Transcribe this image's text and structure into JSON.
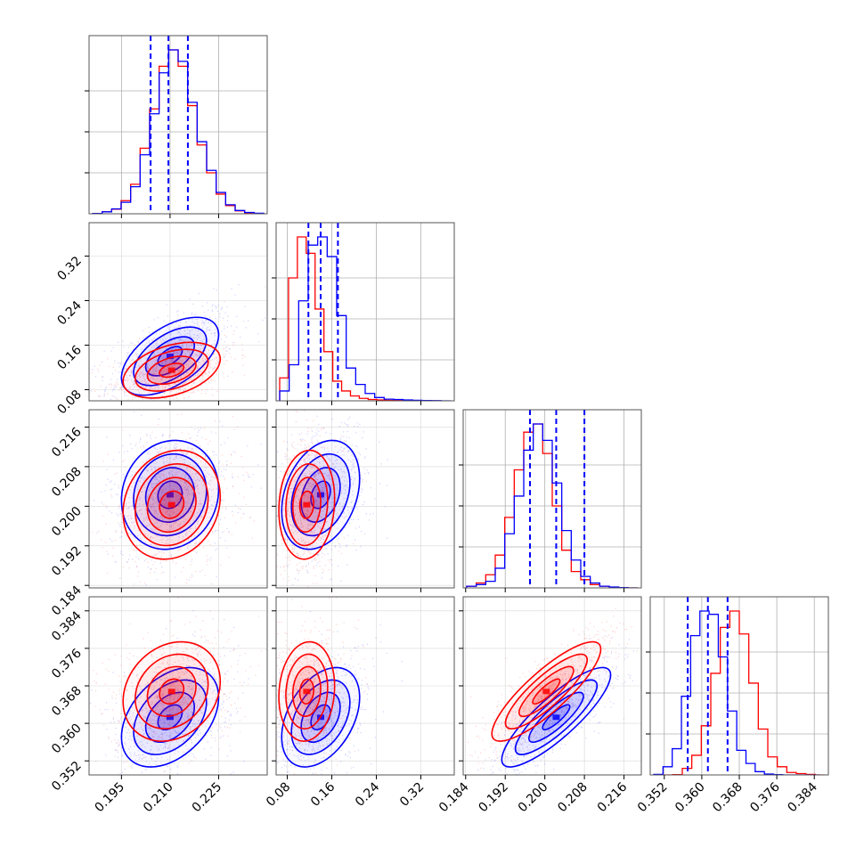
{
  "chart_data": {
    "type": "corner",
    "colors": {
      "series_a": "#0000ff",
      "series_b": "#ff0000",
      "grid": "#b0b0b0",
      "frame": "#555555"
    },
    "grid": true,
    "parameters": [
      {
        "range": [
          0.185,
          0.24
        ],
        "ticks": [
          "0.195",
          "0.210",
          "0.225"
        ],
        "tick_values": [
          0.195,
          0.21,
          0.225
        ]
      },
      {
        "range": [
          0.06,
          0.38
        ],
        "ticks": [
          "0.08",
          "0.16",
          "0.24",
          "0.32"
        ],
        "tick_values": [
          0.08,
          0.16,
          0.24,
          0.32
        ]
      },
      {
        "range": [
          0.1835,
          0.2195
        ],
        "ticks": [
          "0.184",
          "0.192",
          "0.200",
          "0.208",
          "0.216"
        ],
        "tick_values": [
          0.184,
          0.192,
          0.2,
          0.208,
          0.216
        ]
      },
      {
        "range": [
          0.349,
          0.387
        ],
        "ticks": [
          "0.352",
          "0.360",
          "0.368",
          "0.376",
          "0.384"
        ],
        "tick_values": [
          0.352,
          0.36,
          0.368,
          0.376,
          0.384
        ]
      }
    ],
    "series": [
      {
        "color": "#0000ff",
        "means": [
          0.21,
          0.14,
          0.2023,
          0.3613
        ],
        "sds": [
          0.0075,
          0.035,
          0.0055,
          0.0053
        ],
        "quantiles": [
          [
            0.204,
            0.2095,
            0.2155
          ],
          [
            0.118,
            0.14,
            0.171
          ],
          [
            0.197,
            0.2023,
            0.208
          ],
          [
            0.357,
            0.3613,
            0.3655
          ]
        ],
        "correlations": [
          [
            0,
            1,
            0.55
          ],
          [
            0,
            2,
            0.1
          ],
          [
            0,
            3,
            0.4
          ],
          [
            1,
            2,
            0.3
          ],
          [
            1,
            3,
            0.4
          ],
          [
            2,
            3,
            0.85
          ]
        ],
        "histograms": [
          [
            0.002,
            0.012,
            0.03,
            0.07,
            0.165,
            0.36,
            0.61,
            0.86,
            1.0,
            0.93,
            0.68,
            0.44,
            0.265,
            0.13,
            0.055,
            0.02,
            0.008,
            0.003
          ],
          [
            0.06,
            0.22,
            0.61,
            0.95,
            1.0,
            0.88,
            0.52,
            0.2,
            0.1,
            0.045,
            0.02,
            0.01,
            0.008,
            0.005,
            0.003,
            0.002,
            0.001,
            0.0
          ],
          [
            0.01,
            0.02,
            0.04,
            0.12,
            0.33,
            0.56,
            0.84,
            1.0,
            0.9,
            0.64,
            0.35,
            0.17,
            0.07,
            0.03,
            0.01,
            0.005,
            0.002,
            0.0
          ],
          [
            0.003,
            0.05,
            0.16,
            0.48,
            0.85,
            1.0,
            0.98,
            0.72,
            0.39,
            0.15,
            0.07,
            0.02,
            0.005,
            0.002,
            0.0,
            0.0,
            0.0,
            0.0
          ]
        ]
      },
      {
        "color": "#ff0000",
        "means": [
          0.2105,
          0.115,
          0.2003,
          0.3668
        ],
        "sds": [
          0.0075,
          0.025,
          0.0055,
          0.0053
        ],
        "quantiles": [],
        "correlations": [
          [
            0,
            1,
            0.4
          ],
          [
            0,
            2,
            0.15
          ],
          [
            0,
            3,
            0.2
          ],
          [
            1,
            2,
            0.1
          ],
          [
            1,
            3,
            0.1
          ],
          [
            2,
            3,
            0.85
          ]
        ],
        "histograms": [
          [
            0.002,
            0.012,
            0.028,
            0.08,
            0.18,
            0.4,
            0.64,
            0.9,
            1.0,
            0.9,
            0.66,
            0.42,
            0.25,
            0.12,
            0.05,
            0.018,
            0.006,
            0.002
          ],
          [
            0.14,
            0.75,
            1.0,
            0.9,
            0.56,
            0.3,
            0.12,
            0.06,
            0.03,
            0.015,
            0.008,
            0.005,
            0.003,
            0.002,
            0.001,
            0.0,
            0.0,
            0.0
          ],
          [
            0.01,
            0.03,
            0.08,
            0.2,
            0.43,
            0.72,
            0.95,
            1.0,
            0.82,
            0.5,
            0.23,
            0.1,
            0.05,
            0.02,
            0.01,
            0.004,
            0.001,
            0.0
          ],
          [
            0.0,
            0.0,
            0.002,
            0.04,
            0.12,
            0.3,
            0.62,
            0.9,
            1.0,
            0.86,
            0.56,
            0.28,
            0.11,
            0.05,
            0.015,
            0.008,
            0.003,
            0.0
          ]
        ]
      }
    ]
  }
}
